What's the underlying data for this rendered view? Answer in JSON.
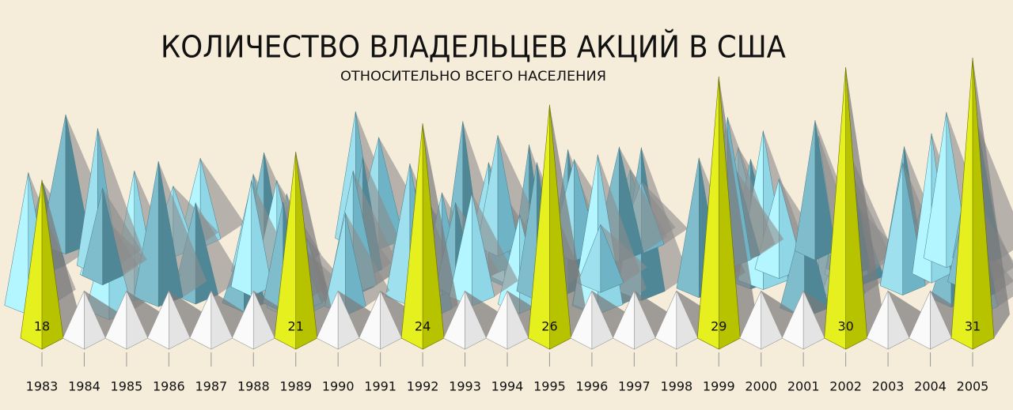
{
  "chart_data": {
    "type": "spike",
    "title": "КОЛИЧЕСТВО ВЛАДЕЛЬЦЕВ АКЦИЙ В США",
    "subtitle": "ОТНОСИТЕЛЬНО ВСЕГО НАСЕЛЕНИЯ",
    "categories": [
      "1983",
      "1984",
      "1985",
      "1986",
      "1987",
      "1988",
      "1989",
      "1990",
      "1991",
      "1992",
      "1993",
      "1994",
      "1995",
      "1996",
      "1997",
      "1998",
      "1999",
      "2000",
      "2001",
      "2002",
      "2003",
      "2004",
      "2005"
    ],
    "values": [
      18,
      null,
      null,
      null,
      null,
      null,
      21,
      null,
      null,
      24,
      null,
      null,
      26,
      null,
      null,
      null,
      29,
      null,
      null,
      30,
      null,
      null,
      31
    ],
    "color": "#e6f01e"
  }
}
